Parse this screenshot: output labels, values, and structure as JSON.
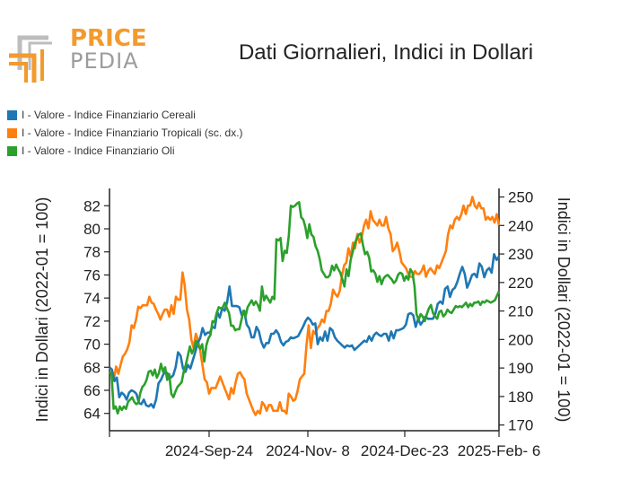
{
  "logo": {
    "line1": "PRICE",
    "line2": "PEDIA"
  },
  "colors": {
    "blue": "#1f77b4",
    "orange": "#ff7f0e",
    "green": "#2ca02c",
    "logo_orange": "#f29a2e",
    "logo_gray": "#9c9c9c"
  },
  "chart_data": {
    "type": "line",
    "title": "Dati Giornalieri, Indici in Dollari",
    "ylabel_left": "Indici in Dollari (2022-01 = 100)",
    "ylabel_right": "Indici in Dollari (2022-01 = 100)",
    "x_tick_labels": [
      "2024-Sep-24",
      "2024-Nov- 8",
      "2024-Dec-23",
      "2025-Feb- 6"
    ],
    "y_left_ticks": [
      64,
      66,
      68,
      70,
      72,
      74,
      76,
      78,
      80,
      82
    ],
    "y_right_ticks": [
      170,
      180,
      190,
      200,
      210,
      220,
      230,
      240,
      250
    ],
    "ylim_left": [
      62.5,
      83.5
    ],
    "ylim_right": [
      168,
      253
    ],
    "grid": false,
    "legend_position": "top-left",
    "series": [
      {
        "name": "I - Valore - Indice Finanziario Cereali",
        "axis": "left",
        "color": "#1f77b4",
        "values": [
          68.0,
          67.8,
          66.8,
          67.1,
          65.4,
          65.8,
          65.6,
          65.2,
          65.8,
          66.0,
          65.9,
          65.7,
          64.9,
          64.8,
          65.2,
          64.7,
          64.6,
          64.8,
          64.5,
          65.2,
          66.6,
          66.9,
          67.4,
          67.6,
          67.4,
          67.1,
          67.3,
          68.0,
          69.3,
          69.0,
          67.9,
          67.6,
          68.2,
          67.9,
          68.6,
          69.3,
          70.1,
          70.5,
          71.4,
          70.8,
          71.0,
          71.0,
          71.5,
          71.4,
          72.8,
          72.3,
          73.1,
          72.9,
          73.6,
          75.0,
          73.3,
          73.3,
          73.3,
          73.2,
          72.5,
          72.9,
          71.7,
          71.4,
          70.6,
          70.6,
          71.5,
          71.1,
          70.2,
          69.7,
          70.1,
          70.1,
          70.9,
          70.9,
          71.2,
          70.9,
          70.2,
          69.9,
          70.2,
          70.3,
          70.6,
          70.5,
          70.6,
          70.7,
          71.1,
          71.5,
          72.0,
          72.3,
          72.1,
          71.7,
          71.8,
          70.0,
          70.6,
          70.3,
          71.1,
          70.3,
          71.4,
          71.2,
          70.6,
          70.3,
          70.1,
          69.9,
          69.7,
          69.9,
          69.8,
          69.9,
          69.5,
          69.7,
          69.9,
          70.1,
          70.3,
          70.2,
          70.7,
          70.3,
          70.8,
          71.0,
          70.8,
          70.7,
          70.9,
          70.9,
          70.3,
          71.1,
          70.5,
          71.2,
          71.2,
          71.3,
          71.4,
          71.7,
          72.6,
          72.7,
          72.5,
          71.5,
          72.2,
          71.7,
          72.0,
          72.4,
          72.2,
          72.2,
          72.2,
          72.6,
          73.5,
          73.7,
          73.5,
          74.8,
          75.0,
          74.1,
          74.7,
          74.9,
          75.4,
          76.1,
          76.7,
          76.1,
          74.9,
          75.4,
          76.0,
          76.1,
          75.8,
          77.0,
          76.7,
          75.8,
          76.4,
          76.6,
          76.2,
          77.8,
          77.3,
          77.6
        ]
      },
      {
        "name": "I - Valore - Indice Finanziario Tropicali (sc. dx.)",
        "axis": "right",
        "color": "#ff7f0e",
        "values": [
          190.0,
          189.5,
          186.0,
          190.5,
          188.0,
          191.0,
          194.0,
          195.0,
          196.5,
          199.0,
          205.0,
          204.0,
          207.0,
          211.5,
          211.0,
          212.0,
          212.0,
          212.0,
          215.0,
          213.0,
          212.5,
          210.5,
          209.0,
          207.0,
          209.0,
          210.5,
          210.5,
          208.0,
          212.0,
          209.0,
          215.0,
          214.0,
          214.0,
          223.5,
          219.0,
          210.5,
          207.0,
          200.0,
          197.0,
          202.0,
          200.0,
          196.0,
          191.0,
          186.0,
          185.0,
          181.0,
          183.0,
          183.0,
          183.0,
          185.0,
          187.0,
          185.0,
          183.0,
          181.0,
          179.0,
          183.0,
          181.0,
          185.0,
          188.0,
          188.5,
          187.0,
          186.0,
          181.0,
          179.0,
          177.0,
          175.0,
          173.5,
          175.0,
          174.0,
          178.0,
          177.0,
          175.0,
          177.0,
          177.0,
          175.0,
          175.0,
          175.0,
          178.0,
          175.0,
          175.0,
          174.0,
          181.0,
          180.0,
          178.5,
          179.0,
          182.0,
          186.0,
          187.0,
          188.0,
          198.0,
          205.0,
          197.0,
          203.0,
          202.0,
          204.0,
          205.0,
          207.0,
          206.0,
          210.0,
          210.0,
          212.5,
          217.5,
          216.0,
          215.0,
          217.0,
          222.0,
          226.0,
          227.0,
          232.0,
          229.0,
          234.0,
          232.0,
          237.0,
          234.0,
          236.0,
          240.0,
          242.0,
          239.0,
          245.0,
          242.0,
          241.0,
          240.0,
          242.0,
          240.0,
          240.0,
          243.0,
          239.0,
          237.0,
          231.0,
          232.0,
          234.0,
          231.0,
          227.0,
          226.0,
          225.0,
          223.0,
          222.0,
          222.0,
          224.0,
          223.0,
          223.0,
          224.0,
          226.0,
          222.0,
          224.0,
          225.0,
          224.0,
          223.0,
          226.0,
          225.0,
          227.0,
          229.0,
          231.0,
          237.0,
          240.0,
          239.0,
          242.0,
          243.0,
          242.0,
          244.0,
          247.0,
          244.0,
          247.0,
          247.0,
          250.0,
          247.0,
          246.0,
          248.0,
          246.0,
          246.0,
          242.0,
          243.0,
          242.0,
          243.0,
          241.0,
          244.0,
          240.0
        ]
      },
      {
        "name": "I - Valore - Indice Finanziario Oli",
        "axis": "left",
        "color": "#2ca02c",
        "values": [
          67.6,
          67.4,
          64.4,
          64.6,
          64.0,
          64.6,
          64.3,
          64.6,
          64.4,
          65.0,
          65.2,
          65.4,
          65.0,
          64.8,
          64.9,
          65.8,
          66.3,
          66.5,
          66.9,
          67.6,
          67.7,
          67.3,
          67.8,
          67.1,
          67.5,
          68.3,
          67.6,
          68.0,
          66.9,
          67.4,
          65.7,
          65.4,
          65.9,
          66.3,
          66.5,
          66.7,
          67.6,
          68.2,
          69.0,
          69.8,
          69.2,
          69.6,
          70.3,
          69.9,
          69.6,
          70.0,
          68.5,
          69.9,
          70.5,
          70.8,
          72.0,
          71.9,
          72.7,
          73.2,
          73.1,
          73.2,
          73.6,
          73.1,
          72.7,
          71.6,
          71.6,
          71.2,
          71.3,
          71.3,
          72.1,
          72.9,
          72.4,
          73.2,
          73.5,
          73.8,
          73.4,
          73.7,
          73.4,
          72.9,
          75.0,
          73.8,
          74.2,
          73.9,
          73.6,
          74.1,
          73.9,
          79.1,
          79.0,
          79.2,
          77.2,
          78.1,
          77.9,
          79.4,
          82.0,
          81.9,
          82.0,
          82.2,
          82.3,
          81.0,
          80.8,
          80.2,
          79.2,
          80.4,
          79.5,
          79.3,
          78.5,
          78.1,
          77.4,
          76.4,
          76.1,
          75.8,
          75.8,
          76.0,
          76.8,
          76.4,
          76.9,
          76.5,
          76.2,
          75.6,
          75.0,
          76.5,
          75.9,
          77.3,
          78.0,
          78.7,
          79.2,
          79.5,
          79.6,
          78.6,
          77.8,
          78.0,
          77.5,
          76.3,
          76.4,
          76.1,
          75.4,
          75.9,
          75.2,
          75.7,
          75.9,
          76.0,
          75.8,
          75.6,
          75.3,
          75.5,
          76.0,
          76.2,
          76.1,
          75.5,
          75.9,
          75.6,
          76.5,
          76.2,
          75.0,
          72.6,
          72.1,
          72.6,
          72.4,
          72.0,
          72.6,
          73.1,
          73.4,
          72.7,
          72.4,
          72.2,
          72.8,
          72.9,
          72.4,
          72.6,
          73.0,
          72.8,
          72.7,
          73.0,
          73.3,
          73.2,
          73.3,
          73.2,
          73.4,
          73.6,
          73.2,
          73.5,
          73.3,
          73.6,
          73.6,
          73.7,
          73.4,
          73.7,
          73.6,
          73.8,
          73.7,
          73.6,
          73.7,
          73.8,
          74.2,
          74.6
        ]
      }
    ]
  }
}
